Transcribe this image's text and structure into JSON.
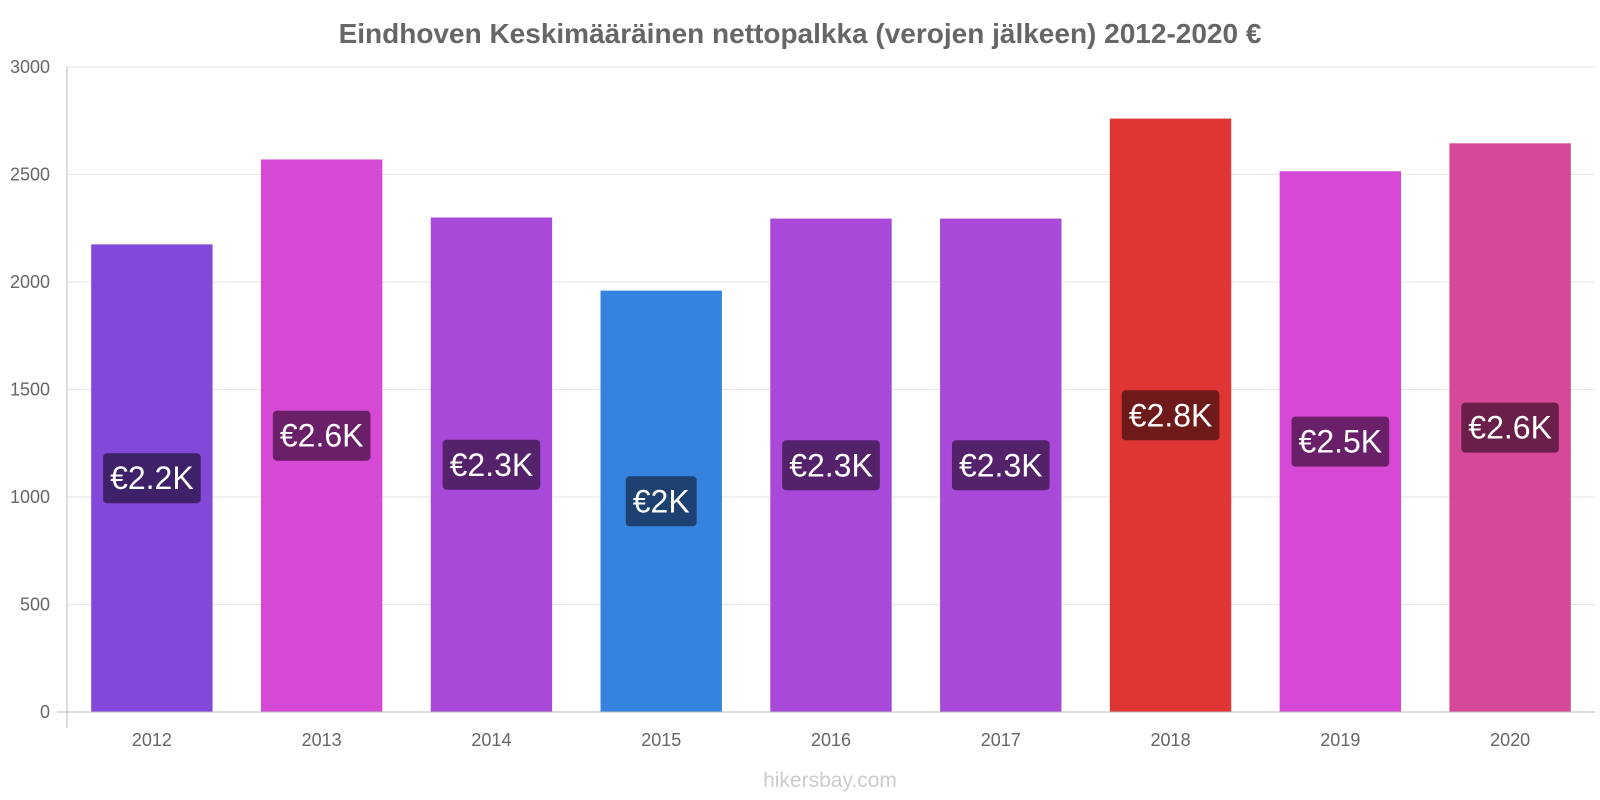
{
  "chart_data": {
    "type": "bar",
    "title": "Eindhoven Keskimääräinen nettopalkka (verojen jälkeen) 2012-2020 €",
    "categories": [
      "2012",
      "2013",
      "2014",
      "2015",
      "2016",
      "2017",
      "2018",
      "2019",
      "2020"
    ],
    "values": [
      2175,
      2570,
      2300,
      1960,
      2295,
      2295,
      2760,
      2515,
      2645
    ],
    "data_labels": [
      "€2.2K",
      "€2.6K",
      "€2.3K",
      "€2K",
      "€2.3K",
      "€2.3K",
      "€2.8K",
      "€2.5K",
      "€2.6K"
    ],
    "bar_colors": [
      "#8249d9",
      "#d649d4",
      "#a949d9",
      "#3683df",
      "#a949d9",
      "#a949d9",
      "#df3535",
      "#d649d4",
      "#d64999"
    ],
    "label_bg_colors": [
      "#3e2168",
      "#6a1f69",
      "#54216b",
      "#1d4170",
      "#54216b",
      "#54216b",
      "#6f1a1a",
      "#6a1f69",
      "#6a1f4a"
    ],
    "yticks": [
      "0",
      "500",
      "1000",
      "1500",
      "2000",
      "2500",
      "3000"
    ],
    "ylim": [
      0,
      3000
    ],
    "grid": true,
    "legend": "none"
  },
  "footer": {
    "source": "hikersbay.com"
  }
}
